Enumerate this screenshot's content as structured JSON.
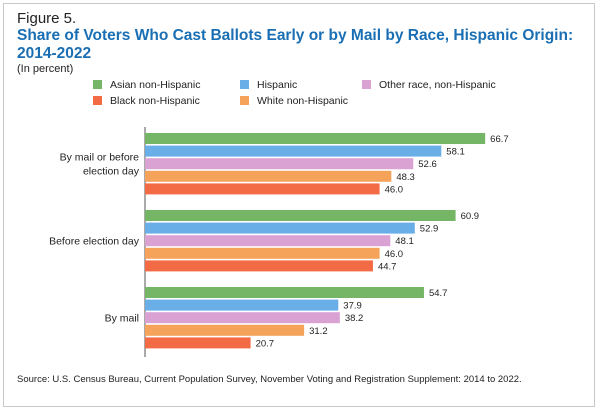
{
  "figure_label": "Figure 5.",
  "title": "Share of Voters Who Cast Ballots Early or by Mail by Race, Hispanic Origin: 2014-2022",
  "subtitle": "(In percent)",
  "source": "Source: U.S. Census Bureau, Current Population Survey, November Voting and Registration Supplement: 2014 to 2022.",
  "chart_data": {
    "type": "bar",
    "orientation": "horizontal",
    "title": "Share of Voters Who Cast Ballots Early or by Mail by Race, Hispanic Origin: 2014-2022",
    "ylabel": "",
    "xlabel": "",
    "xlim": [
      0,
      70
    ],
    "grid": false,
    "legend_position": "top",
    "categories": [
      "By mail or before election day",
      "Before election day",
      "By mail"
    ],
    "category_lines": [
      [
        "By mail or before",
        "election day"
      ],
      [
        "Before election day"
      ],
      [
        "By mail"
      ]
    ],
    "legend": [
      {
        "name": "Asian non-Hispanic",
        "color": "#74b665"
      },
      {
        "name": "Hispanic",
        "color": "#6aaee8"
      },
      {
        "name": "Other race, non-Hispanic",
        "color": "#d9a2d3"
      },
      {
        "name": "Black non-Hispanic",
        "color": "#f26b45"
      },
      {
        "name": "White non-Hispanic",
        "color": "#f5a35a"
      }
    ],
    "series": [
      {
        "name": "Asian non-Hispanic",
        "color": "#74b665",
        "values": [
          66.7,
          60.9,
          54.7
        ]
      },
      {
        "name": "Hispanic",
        "color": "#6aaee8",
        "values": [
          58.1,
          52.9,
          37.9
        ]
      },
      {
        "name": "Other race, non-Hispanic",
        "color": "#d9a2d3",
        "values": [
          52.6,
          48.1,
          38.2
        ]
      },
      {
        "name": "White non-Hispanic",
        "color": "#f5a35a",
        "values": [
          48.3,
          46.0,
          31.2
        ]
      },
      {
        "name": "Black non-Hispanic",
        "color": "#f26b45",
        "values": [
          46.0,
          44.7,
          20.7
        ]
      }
    ],
    "value_labels": [
      [
        "66.7",
        "58.1",
        "52.6",
        "48.3",
        "46.0"
      ],
      [
        "60.9",
        "52.9",
        "48.1",
        "46.0",
        "44.7"
      ],
      [
        "54.7",
        "37.9",
        "38.2",
        "31.2",
        "20.7"
      ]
    ]
  }
}
